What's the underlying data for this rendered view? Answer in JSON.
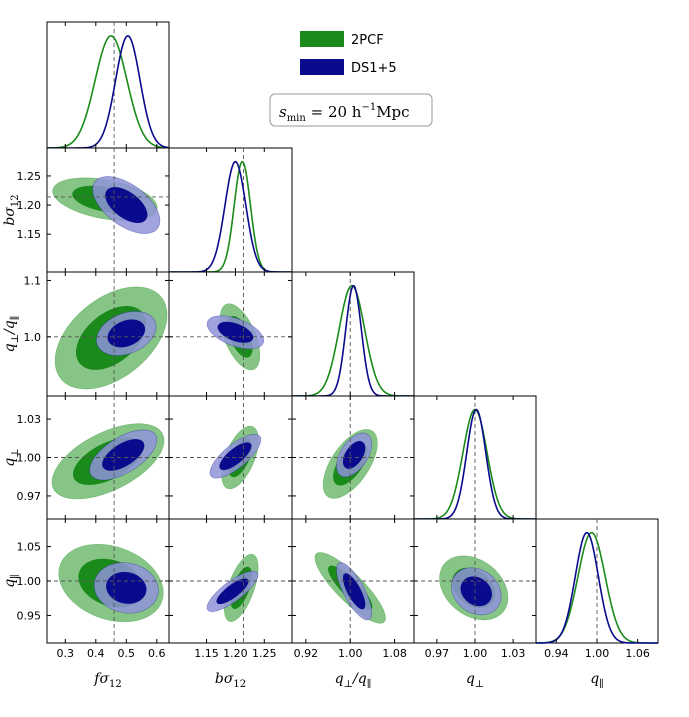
{
  "figure": {
    "legend": [
      {
        "label": "2PCF",
        "color": "#1a8a1a"
      },
      {
        "label": "DS1+5",
        "color": "#0a0a8c"
      }
    ],
    "annotation": {
      "text": "20 h",
      "prefix": "s",
      "sub": "min",
      "sup": "−1",
      "unit": "Mpc"
    },
    "series_colors": {
      "2PCF": {
        "line": "#1a8a1a",
        "inner": "#1a8a1a",
        "outer": "#86c586"
      },
      "DS1+5": {
        "line": "#0a0a8c",
        "inner": "#0a0a8c",
        "outer": "#8f93d8"
      }
    }
  },
  "chart_data": {
    "type": "corner",
    "series": [
      "2PCF",
      "DS1+5"
    ],
    "parameters": [
      {
        "name": "fσ12",
        "base": "f",
        "greek": "σ",
        "sub": "12",
        "fiducial": 0.46,
        "range": [
          0.24,
          0.64
        ],
        "ticks": [
          0.3,
          0.4,
          0.5,
          0.6
        ],
        "tick_labels": [
          "0.3",
          "0.4",
          "0.5",
          "0.6"
        ]
      },
      {
        "name": "bσ12",
        "base": "b",
        "greek": "σ",
        "sub": "12",
        "fiducial": 1.214,
        "range": [
          1.085,
          1.298
        ],
        "ticks": [
          1.15,
          1.2,
          1.25
        ],
        "tick_labels": [
          "1.15",
          "1.20",
          "1.25"
        ]
      },
      {
        "name": "q⊥/q∥",
        "base": "q",
        "sub": "⊥",
        "slash": "/q",
        "sub2": "∥",
        "fiducial": 1.0,
        "range": [
          0.895,
          1.115
        ],
        "ticks": [
          0.92,
          1.0,
          1.08
        ],
        "tick_labels": [
          "0.92",
          "1.00",
          "1.08"
        ]
      },
      {
        "name": "q⊥",
        "base": "q",
        "sub": "⊥",
        "fiducial": 1.0,
        "range": [
          0.952,
          1.048
        ],
        "ticks": [
          0.97,
          1.0,
          1.03
        ],
        "tick_labels": [
          "0.97",
          "1.00",
          "1.03"
        ]
      },
      {
        "name": "q∥",
        "base": "q",
        "sub": "∥",
        "fiducial": 1.0,
        "range": [
          0.91,
          1.09
        ],
        "ticks": [
          0.94,
          1.0,
          1.06
        ],
        "tick_labels": [
          "0.94",
          "1.00",
          "1.06"
        ]
      }
    ],
    "y_tick_rows": [
      {
        "param": 1,
        "ticks": [
          1.15,
          1.2,
          1.25
        ],
        "tick_labels": [
          "1.15",
          "1.20",
          "1.25"
        ]
      },
      {
        "param": 2,
        "ticks": [
          1.0,
          1.1
        ],
        "tick_labels": [
          "1.0",
          "1.1"
        ]
      },
      {
        "param": 3,
        "ticks": [
          0.97,
          1.0,
          1.03
        ],
        "tick_labels": [
          "0.97",
          "1.00",
          "1.03"
        ]
      },
      {
        "param": 4,
        "ticks": [
          0.95,
          1.0,
          1.05
        ],
        "tick_labels": [
          "0.95",
          "1.00",
          "1.05"
        ]
      }
    ],
    "marginals": [
      {
        "param": 0,
        "2PCF": {
          "mean": 0.45,
          "sigma": 0.052
        },
        "DS1+5": {
          "mean": 0.505,
          "sigma": 0.04
        }
      },
      {
        "param": 1,
        "2PCF": {
          "mean": 1.212,
          "sigma": 0.014
        },
        "DS1+5": {
          "mean": 1.2,
          "sigma": 0.018
        }
      },
      {
        "param": 2,
        "2PCF": {
          "mean": 1.003,
          "sigma": 0.023
        },
        "DS1+5": {
          "mean": 1.006,
          "sigma": 0.014
        }
      },
      {
        "param": 3,
        "2PCF": {
          "mean": 1.0,
          "sigma": 0.0095
        },
        "DS1+5": {
          "mean": 1.001,
          "sigma": 0.0075
        }
      },
      {
        "param": 4,
        "2PCF": {
          "mean": 0.992,
          "sigma": 0.02
        },
        "DS1+5": {
          "mean": 0.985,
          "sigma": 0.017
        }
      }
    ],
    "contours": [
      {
        "x": 0,
        "y": 1,
        "2PCF": {
          "center": [
            0.43,
            1.21
          ],
          "sigma": [
            0.07,
            0.015
          ],
          "rho": -0.38
        },
        "DS1+5": {
          "center": [
            0.5,
            1.2
          ],
          "sigma": [
            0.045,
            0.02
          ],
          "rho": -0.55
        }
      },
      {
        "x": 0,
        "y": 2,
        "2PCF": {
          "center": [
            0.45,
            0.998
          ],
          "sigma": [
            0.075,
            0.037
          ],
          "rho": 0.45
        },
        "DS1+5": {
          "center": [
            0.5,
            1.006
          ],
          "sigma": [
            0.04,
            0.016
          ],
          "rho": 0.3
        }
      },
      {
        "x": 0,
        "y": 3,
        "2PCF": {
          "center": [
            0.44,
            0.997
          ],
          "sigma": [
            0.075,
            0.012
          ],
          "rho": 0.55
        },
        "DS1+5": {
          "center": [
            0.49,
            1.002
          ],
          "sigma": [
            0.045,
            0.008
          ],
          "rho": 0.6
        }
      },
      {
        "x": 0,
        "y": 4,
        "2PCF": {
          "center": [
            0.45,
            0.997
          ],
          "sigma": [
            0.07,
            0.023
          ],
          "rho": -0.25
        },
        "DS1+5": {
          "center": [
            0.5,
            0.99
          ],
          "sigma": [
            0.043,
            0.015
          ],
          "rho": -0.1
        }
      },
      {
        "x": 1,
        "y": 2,
        "2PCF": {
          "center": [
            1.208,
            1.0
          ],
          "sigma": [
            0.014,
            0.024
          ],
          "rho": -0.55
        },
        "DS1+5": {
          "center": [
            1.2,
            1.008
          ],
          "sigma": [
            0.02,
            0.012
          ],
          "rho": -0.5
        }
      },
      {
        "x": 1,
        "y": 3,
        "2PCF": {
          "center": [
            1.208,
            1.0
          ],
          "sigma": [
            0.013,
            0.01
          ],
          "rho": 0.55
        },
        "DS1+5": {
          "center": [
            1.2,
            1.001
          ],
          "sigma": [
            0.018,
            0.007
          ],
          "rho": 0.75
        }
      },
      {
        "x": 1,
        "y": 4,
        "2PCF": {
          "center": [
            1.21,
            0.99
          ],
          "sigma": [
            0.012,
            0.02
          ],
          "rho": 0.6
        },
        "DS1+5": {
          "center": [
            1.195,
            0.985
          ],
          "sigma": [
            0.018,
            0.012
          ],
          "rho": 0.8
        }
      },
      {
        "x": 2,
        "y": 3,
        "2PCF": {
          "center": [
            1.0,
            0.995
          ],
          "sigma": [
            0.02,
            0.011
          ],
          "rho": 0.6
        },
        "DS1+5": {
          "center": [
            1.007,
            1.002
          ],
          "sigma": [
            0.013,
            0.007
          ],
          "rho": 0.5
        }
      },
      {
        "x": 2,
        "y": 4,
        "2PCF": {
          "center": [
            1.0,
            0.99
          ],
          "sigma": [
            0.026,
            0.021
          ],
          "rho": -0.85
        },
        "DS1+5": {
          "center": [
            1.007,
            0.985
          ],
          "sigma": [
            0.013,
            0.017
          ],
          "rho": -0.75
        }
      },
      {
        "x": 3,
        "y": 4,
        "2PCF": {
          "center": [
            0.999,
            0.99
          ],
          "sigma": [
            0.011,
            0.019
          ],
          "rho": -0.3
        },
        "DS1+5": {
          "center": [
            1.001,
            0.985
          ],
          "sigma": [
            0.008,
            0.014
          ],
          "rho": -0.2
        }
      }
    ]
  }
}
